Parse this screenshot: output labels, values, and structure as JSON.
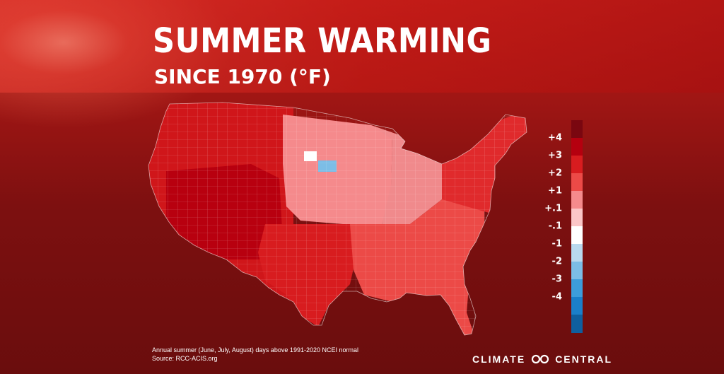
{
  "title": "SUMMER WARMING",
  "subtitle": "SINCE 1970 (°F)",
  "legend": {
    "labels": [
      "+4",
      "+3",
      "+2",
      "+1",
      "+.1",
      "-.1",
      "-1",
      "-2",
      "-3",
      "-4"
    ],
    "colors": [
      "#7a0710",
      "#b5000f",
      "#d81c1f",
      "#ec4a47",
      "#f58a8c",
      "#fbc6c7",
      "#ffffff",
      "#b9d9ee",
      "#7cbde6",
      "#3c9ddb",
      "#1a7fca",
      "#0f5f9f"
    ]
  },
  "map": {
    "region_colors": {
      "west": "#d0161a",
      "southwest": "#b8000f",
      "texas": "#d81c1f",
      "plains": "#f58a8c",
      "midwest": "#f08a8c",
      "southeast": "#ec4a47",
      "northeast": "#e02a2c",
      "cool_anomaly": "#7cbde6"
    }
  },
  "footnote": {
    "line1": "Annual summer (June, July, August) days above 1991-2020 NCEI normal",
    "line2": "Source: RCC-ACIS.org"
  },
  "brand": {
    "left": "CLIMATE",
    "right": "CENTRAL"
  }
}
